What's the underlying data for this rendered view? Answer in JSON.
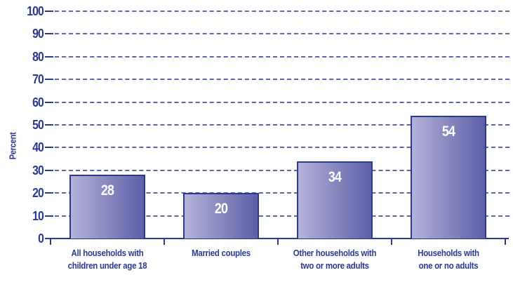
{
  "chart_data": {
    "type": "bar",
    "title": "",
    "xlabel": "",
    "ylabel": "Percent",
    "ylim": [
      0,
      100
    ],
    "yticks": [
      0,
      10,
      20,
      30,
      40,
      50,
      60,
      70,
      80,
      90,
      100
    ],
    "grid": true,
    "legend": null,
    "categories": [
      "All households with children under age 18",
      "Married couples",
      "Other households with two or more adults",
      "Households with one or no adults"
    ],
    "category_lines": [
      [
        "All households with",
        "children under age 18"
      ],
      [
        "Married couples"
      ],
      [
        "Other households with",
        "two or more adults"
      ],
      [
        "Households with",
        "one or no adults"
      ]
    ],
    "values": [
      28,
      20,
      34,
      54
    ],
    "data_labels": [
      "28",
      "20",
      "34",
      "54"
    ]
  },
  "colors": {
    "axis_text": "#2b3a8f",
    "bar_gradient_start": "#b3b3da",
    "bar_gradient_end": "#5b60a8",
    "bar_border": "#2b3a8f",
    "grid": "#4a55a0",
    "value_label": "#ffffff"
  }
}
